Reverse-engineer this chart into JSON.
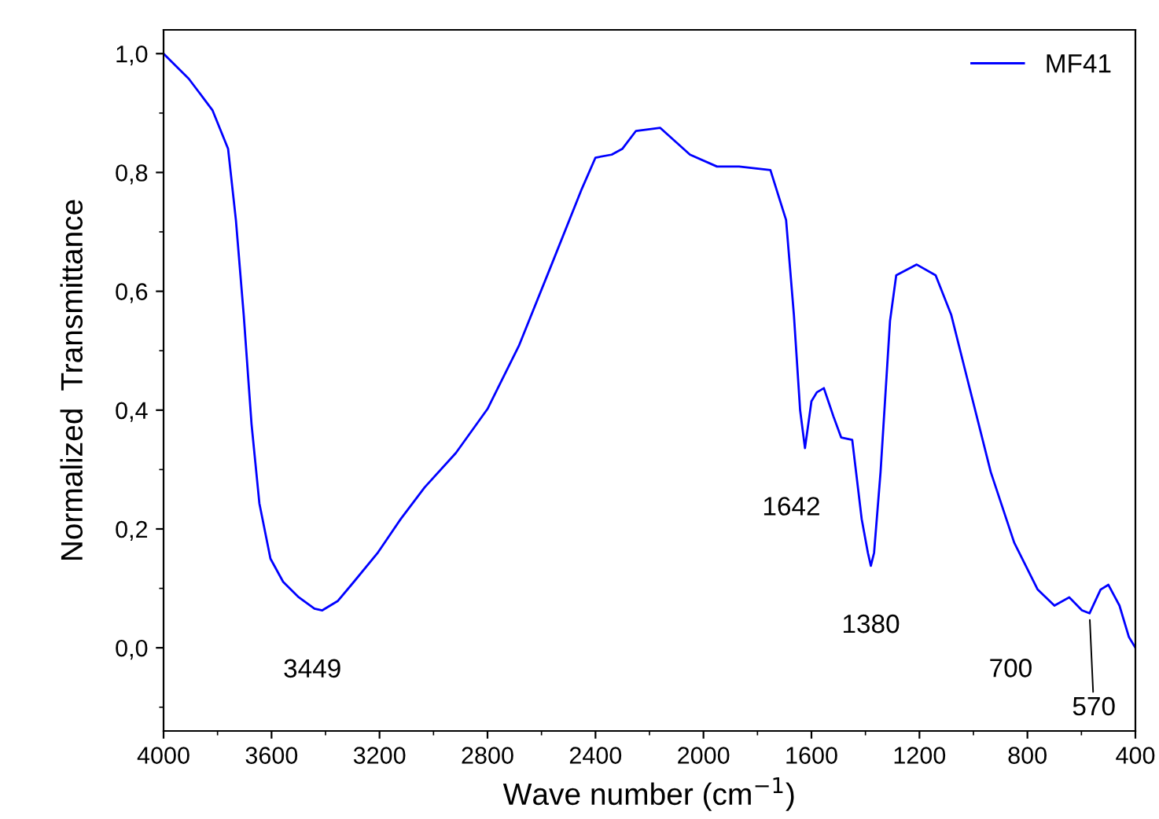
{
  "chart_data": {
    "type": "line",
    "xlabel": "Wave number (cm$^{−1}$)",
    "ylabel": "Normalized  Transmittance",
    "xlim": [
      4000,
      400
    ],
    "ylim": [
      -0.14,
      1.04
    ],
    "xticks": [
      4000,
      3600,
      3200,
      2800,
      2400,
      2000,
      1600,
      1200,
      800,
      400
    ],
    "yticks": [
      {
        "value": 0.0,
        "label": "0,0"
      },
      {
        "value": 0.2,
        "label": "0,2"
      },
      {
        "value": 0.4,
        "label": "0,4"
      },
      {
        "value": 0.6,
        "label": "0,6"
      },
      {
        "value": 0.8,
        "label": "0,8"
      },
      {
        "value": 1.0,
        "label": "1,0"
      }
    ],
    "grid": false,
    "legend": "top right",
    "marker": "none",
    "line_style": "solid",
    "series": [
      {
        "name": "MF41",
        "color": "#0000ff",
        "x": [
          4000,
          3907,
          3819,
          3761,
          3732,
          3703,
          3674,
          3645,
          3604,
          3557,
          3499,
          3441,
          3412,
          3354,
          3295,
          3208,
          3121,
          3033,
          2917,
          2800,
          2684,
          2567,
          2451,
          2400,
          2340,
          2300,
          2250,
          2160,
          2050,
          1950,
          1868,
          1752,
          1694,
          1665,
          1642,
          1624,
          1600,
          1580,
          1554,
          1519,
          1490,
          1449,
          1414,
          1391,
          1380,
          1368,
          1344,
          1309,
          1286,
          1210,
          1140,
          1082,
          1024,
          936,
          849,
          762,
          700,
          645,
          598,
          570,
          529,
          500,
          459,
          424,
          400
        ],
        "values": [
          1.0,
          0.958,
          0.905,
          0.84,
          0.72,
          0.56,
          0.376,
          0.243,
          0.15,
          0.111,
          0.085,
          0.066,
          0.063,
          0.079,
          0.111,
          0.159,
          0.217,
          0.27,
          0.328,
          0.402,
          0.508,
          0.64,
          0.772,
          0.825,
          0.83,
          0.84,
          0.87,
          0.875,
          0.83,
          0.81,
          0.81,
          0.804,
          0.72,
          0.56,
          0.4,
          0.336,
          0.415,
          0.43,
          0.437,
          0.39,
          0.354,
          0.35,
          0.217,
          0.16,
          0.138,
          0.16,
          0.296,
          0.55,
          0.627,
          0.645,
          0.627,
          0.56,
          0.455,
          0.296,
          0.177,
          0.098,
          0.071,
          0.085,
          0.063,
          0.058,
          0.098,
          0.106,
          0.071,
          0.018,
          0.0
        ]
      }
    ],
    "annotations": [
      {
        "text": "3449",
        "x": 3449,
        "y": 0.063
      },
      {
        "text": "1642",
        "x": 1642,
        "y": 0.336
      },
      {
        "text": "1380",
        "x": 1380,
        "y": 0.138
      },
      {
        "text": "700",
        "x": 700,
        "y": 0.071
      },
      {
        "text": "570",
        "x": 570,
        "y": 0.058
      }
    ]
  }
}
